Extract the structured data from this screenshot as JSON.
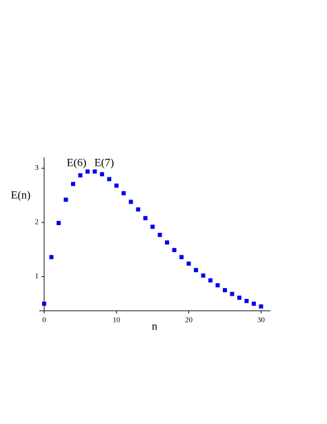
{
  "chart_data": {
    "type": "scatter",
    "x": [
      0,
      1,
      2,
      3,
      4,
      5,
      6,
      7,
      8,
      9,
      10,
      11,
      12,
      13,
      14,
      15,
      16,
      17,
      18,
      19,
      20,
      21,
      22,
      23,
      24,
      25,
      26,
      27,
      28,
      29,
      30
    ],
    "series": [
      {
        "name": "E(n)",
        "color": "#0000ee",
        "values": [
          0.5,
          1.36,
          1.99,
          2.42,
          2.71,
          2.87,
          2.94,
          2.94,
          2.89,
          2.8,
          2.68,
          2.54,
          2.38,
          2.24,
          2.08,
          1.92,
          1.77,
          1.63,
          1.49,
          1.36,
          1.24,
          1.12,
          1.02,
          0.93,
          0.84,
          0.75,
          0.68,
          0.61,
          0.55,
          0.5,
          0.45
        ]
      }
    ],
    "xlabel": "n",
    "ylabel": "E(n)",
    "annotations": [
      "E(6)",
      "E(7)"
    ],
    "xlim": [
      -0.67,
      31.3
    ],
    "ylim": [
      0.37,
      3.2
    ],
    "xticks": [
      0,
      10,
      20,
      30
    ],
    "yticks": [
      1,
      2,
      3
    ],
    "grid": false
  }
}
